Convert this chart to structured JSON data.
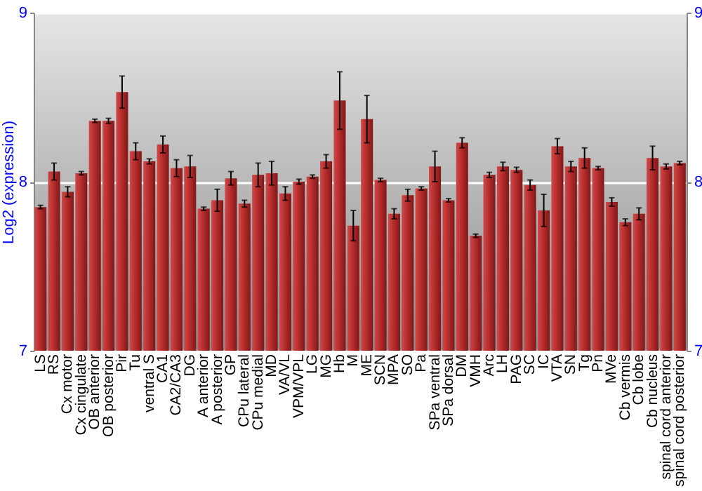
{
  "chart_data": {
    "type": "bar",
    "ylabel": "Log2 (expression)",
    "categories": [
      "LS",
      "RS",
      "Cx motor",
      "Cx cingulate",
      "OB anterior",
      "OB posterior",
      "Pir",
      "Tu",
      "ventral S",
      "CA1",
      "CA2/CA3",
      "DG",
      "A anterior",
      "A posterior",
      "GP",
      "CPu lateral",
      "CPu medial",
      "MD",
      "VA/VL",
      "VPM/VPL",
      "LG",
      "MG",
      "Hb",
      "M",
      "ME",
      "SCN",
      "MPA",
      "SO",
      "Pa",
      "SPa ventral",
      "SPa dorsal",
      "DM",
      "VMH",
      "Arc",
      "LH",
      "PAG",
      "SC",
      "IC",
      "VTA",
      "SN",
      "Tg",
      "Pn",
      "MVe",
      "Cb vermis",
      "Cb lobe",
      "Cb nucleus",
      "spinal cord anterior",
      "spinal cord posterior"
    ],
    "values": [
      7.85,
      8.06,
      7.94,
      8.05,
      8.36,
      8.36,
      8.53,
      8.18,
      8.12,
      8.22,
      8.08,
      8.09,
      7.84,
      7.89,
      8.02,
      7.87,
      8.04,
      8.05,
      7.93,
      8.0,
      8.03,
      8.12,
      8.48,
      7.74,
      8.37,
      8.01,
      7.81,
      7.92,
      7.96,
      8.09,
      7.89,
      8.23,
      7.68,
      8.04,
      8.09,
      8.07,
      7.98,
      7.83,
      8.21,
      8.09,
      8.14,
      8.08,
      7.88,
      7.76,
      7.81,
      8.14,
      8.09,
      8.11
    ],
    "errors": [
      0.01,
      0.05,
      0.03,
      0.01,
      0.01,
      0.015,
      0.095,
      0.05,
      0.015,
      0.05,
      0.05,
      0.065,
      0.01,
      0.065,
      0.04,
      0.02,
      0.07,
      0.07,
      0.04,
      0.015,
      0.01,
      0.04,
      0.17,
      0.09,
      0.14,
      0.01,
      0.03,
      0.035,
      0.01,
      0.09,
      0.01,
      0.03,
      0.01,
      0.015,
      0.025,
      0.015,
      0.03,
      0.095,
      0.045,
      0.03,
      0.06,
      0.01,
      0.025,
      0.02,
      0.035,
      0.07,
      0.015,
      0.01
    ],
    "color": "#b22a2a",
    "ylim": [
      7,
      9
    ],
    "yticks": [
      7,
      8,
      9
    ],
    "y2lim": [
      7,
      9
    ],
    "y2ticks": [
      7,
      8,
      9
    ],
    "grid": "y"
  }
}
